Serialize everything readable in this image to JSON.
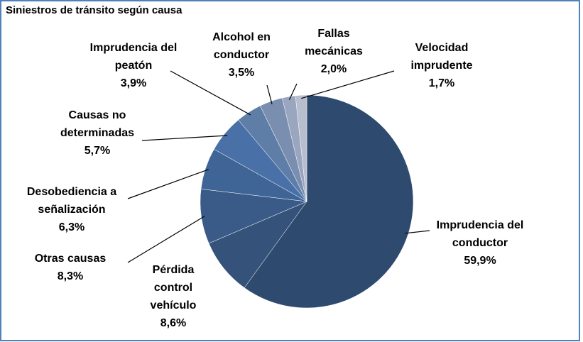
{
  "chart_data": {
    "type": "pie",
    "title": "Siniestros de tránsito según causa",
    "categories": [
      "Imprudencia del conductor",
      "Pérdida control vehículo",
      "Otras causas",
      "Desobediencia a señalización",
      "Causas no determinadas",
      "Imprudencia del peatón",
      "Alcohol en conductor",
      "Fallas mecánicas",
      "Velocidad imprudente"
    ],
    "values": [
      59.9,
      8.6,
      8.3,
      6.3,
      5.7,
      3.9,
      3.5,
      2.0,
      1.7
    ],
    "value_labels": [
      "59,9%",
      "8,6%",
      "8,3%",
      "6,3%",
      "5,7%",
      "3,9%",
      "3,5%",
      "2,0%",
      "1,7%"
    ],
    "colors": [
      "#2e4a6e",
      "#34527a",
      "#3a5b88",
      "#3f6496",
      "#4a70a8",
      "#5e7ea8",
      "#7a8fb0",
      "#9aa6bf",
      "#b7bfcf"
    ]
  }
}
